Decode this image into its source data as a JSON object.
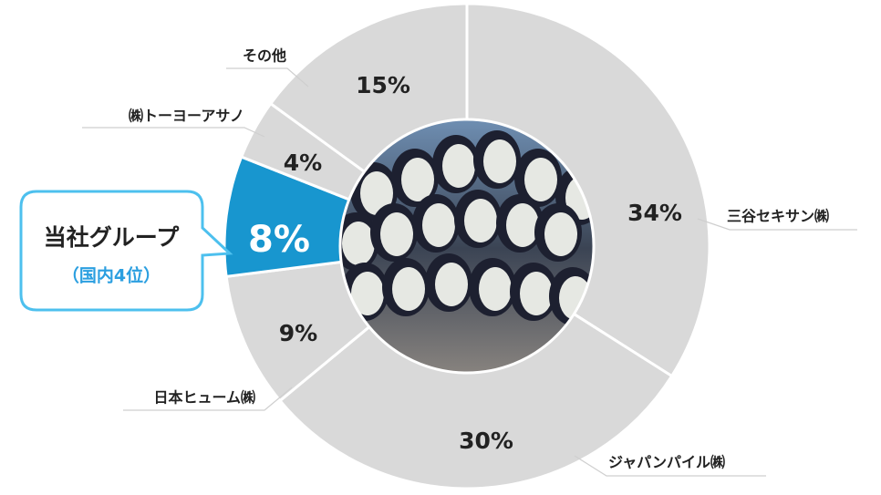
{
  "chart_data": {
    "type": "donut",
    "categories": [
      "三谷セキサン㈱",
      "ジャパンパイル㈱",
      "日本ヒューム㈱",
      "当社グループ",
      "㈱トーヨーアサノ",
      "その他"
    ],
    "values": [
      34,
      30,
      9,
      8,
      4,
      15
    ],
    "value_labels": [
      "34%",
      "30%",
      "9%",
      "8%",
      "4%",
      "15%"
    ],
    "colors": [
      "#d9d9d9",
      "#d9d9d9",
      "#d9d9d9",
      "#1896cf",
      "#d9d9d9",
      "#d9d9d9"
    ],
    "highlight_note": "（国内4位）"
  }
}
